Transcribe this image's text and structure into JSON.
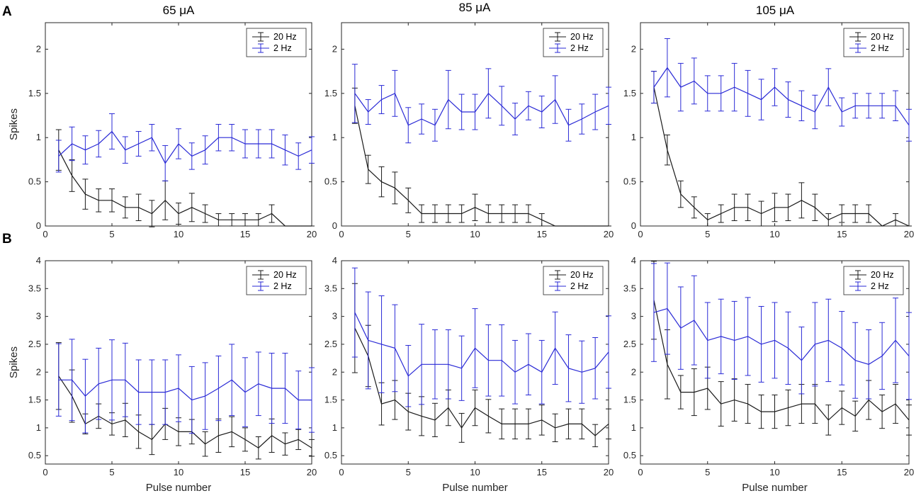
{
  "panel_labels": [
    "A",
    "B"
  ],
  "column_titles": [
    "65 μA",
    "85 μA",
    "105 μA"
  ],
  "colors": {
    "20hz": "#1a1a1a",
    "2hz": "#2a2ad6"
  },
  "chart_data": [
    {
      "type": "line",
      "row": "A",
      "title": "65 μA",
      "xlabel": "",
      "ylabel": "Spikes",
      "xlim": [
        0,
        20
      ],
      "ylim": [
        0,
        2.3
      ],
      "xticks": [
        "0",
        "5",
        "10",
        "15",
        "20"
      ],
      "yticks": [
        "0",
        "0.5",
        "1",
        "1.5",
        "2"
      ],
      "x": [
        1,
        2,
        3,
        4,
        5,
        6,
        7,
        8,
        9,
        10,
        11,
        12,
        13,
        14,
        15,
        16,
        17,
        18,
        19,
        20
      ],
      "legend": [
        "20 Hz",
        "2 Hz"
      ],
      "series": [
        {
          "name": "20 Hz",
          "color": "#1a1a1a",
          "values": [
            0.86,
            0.57,
            0.36,
            0.29,
            0.29,
            0.21,
            0.21,
            0.14,
            0.29,
            0.14,
            0.21,
            0.14,
            0.07,
            0.07,
            0.07,
            0.07,
            0.14,
            0.0,
            0.0,
            0.0
          ],
          "errors": [
            0.23,
            0.18,
            0.17,
            0.13,
            0.13,
            0.12,
            0.15,
            0.15,
            0.22,
            0.12,
            0.16,
            0.1,
            0.07,
            0.07,
            0.07,
            0.07,
            0.1,
            0.0,
            0.0,
            0.0
          ]
        },
        {
          "name": "2 Hz",
          "color": "#2a2ad6",
          "values": [
            0.79,
            0.93,
            0.86,
            0.93,
            1.07,
            0.86,
            0.93,
            1.0,
            0.71,
            0.93,
            0.79,
            0.86,
            1.0,
            1.0,
            0.93,
            0.93,
            0.93,
            0.86,
            0.79,
            0.86
          ],
          "errors": [
            0.18,
            0.19,
            0.16,
            0.15,
            0.2,
            0.15,
            0.14,
            0.15,
            0.2,
            0.17,
            0.15,
            0.16,
            0.15,
            0.15,
            0.16,
            0.16,
            0.16,
            0.17,
            0.15,
            0.15
          ]
        }
      ]
    },
    {
      "type": "line",
      "row": "A",
      "title": "85 μA",
      "xlabel": "",
      "ylabel": "",
      "xlim": [
        0,
        20
      ],
      "ylim": [
        0,
        2.3
      ],
      "xticks": [
        "0",
        "5",
        "10",
        "15",
        "20"
      ],
      "yticks": [
        "0",
        "0.5",
        "1",
        "1.5",
        "2"
      ],
      "x": [
        1,
        2,
        3,
        4,
        5,
        6,
        7,
        8,
        9,
        10,
        11,
        12,
        13,
        14,
        15,
        16,
        17,
        18,
        19,
        20
      ],
      "legend": [
        "20 Hz",
        "2 Hz"
      ],
      "series": [
        {
          "name": "20 Hz",
          "color": "#1a1a1a",
          "values": [
            1.36,
            0.64,
            0.5,
            0.43,
            0.29,
            0.14,
            0.14,
            0.14,
            0.14,
            0.21,
            0.14,
            0.14,
            0.14,
            0.14,
            0.07,
            0.0,
            0.0,
            0.0,
            0.0,
            0.0
          ],
          "errors": [
            0.2,
            0.16,
            0.17,
            0.18,
            0.14,
            0.1,
            0.1,
            0.1,
            0.1,
            0.15,
            0.1,
            0.1,
            0.1,
            0.1,
            0.07,
            0.0,
            0.0,
            0.0,
            0.0,
            0.0
          ]
        },
        {
          "name": "2 Hz",
          "color": "#2a2ad6",
          "values": [
            1.5,
            1.29,
            1.43,
            1.5,
            1.14,
            1.21,
            1.14,
            1.43,
            1.29,
            1.29,
            1.5,
            1.36,
            1.21,
            1.36,
            1.29,
            1.43,
            1.14,
            1.21,
            1.29,
            1.36
          ],
          "errors": [
            0.33,
            0.14,
            0.16,
            0.26,
            0.2,
            0.17,
            0.18,
            0.33,
            0.2,
            0.2,
            0.28,
            0.22,
            0.18,
            0.16,
            0.18,
            0.27,
            0.18,
            0.17,
            0.2,
            0.21
          ]
        }
      ]
    },
    {
      "type": "line",
      "row": "A",
      "title": "105 μA",
      "xlabel": "",
      "ylabel": "",
      "xlim": [
        0,
        20
      ],
      "ylim": [
        0,
        2.3
      ],
      "xticks": [
        "0",
        "5",
        "10",
        "15",
        "20"
      ],
      "yticks": [
        "0",
        "0.5",
        "1",
        "1.5",
        "2"
      ],
      "x": [
        1,
        2,
        3,
        4,
        5,
        6,
        7,
        8,
        9,
        10,
        11,
        12,
        13,
        14,
        15,
        16,
        17,
        18,
        19,
        20
      ],
      "legend": [
        "20 Hz",
        "2 Hz"
      ],
      "series": [
        {
          "name": "20 Hz",
          "color": "#1a1a1a",
          "values": [
            1.57,
            0.86,
            0.36,
            0.21,
            0.07,
            0.14,
            0.21,
            0.21,
            0.14,
            0.21,
            0.21,
            0.29,
            0.21,
            0.07,
            0.14,
            0.14,
            0.14,
            0.0,
            0.07,
            0.0
          ],
          "errors": [
            0.18,
            0.17,
            0.15,
            0.12,
            0.07,
            0.1,
            0.15,
            0.15,
            0.14,
            0.16,
            0.15,
            0.2,
            0.15,
            0.07,
            0.1,
            0.1,
            0.1,
            0.0,
            0.07,
            0.0
          ]
        },
        {
          "name": "2 Hz",
          "color": "#2a2ad6",
          "values": [
            1.57,
            1.79,
            1.57,
            1.64,
            1.5,
            1.5,
            1.57,
            1.5,
            1.43,
            1.57,
            1.43,
            1.36,
            1.29,
            1.57,
            1.29,
            1.36,
            1.36,
            1.36,
            1.36,
            1.14
          ],
          "errors": [
            0.18,
            0.33,
            0.27,
            0.26,
            0.2,
            0.2,
            0.27,
            0.26,
            0.23,
            0.21,
            0.2,
            0.17,
            0.19,
            0.21,
            0.16,
            0.14,
            0.14,
            0.14,
            0.17,
            0.18
          ]
        }
      ]
    },
    {
      "type": "line",
      "row": "B",
      "title": "",
      "xlabel": "Pulse number",
      "ylabel": "Spikes",
      "xlim": [
        0,
        20
      ],
      "ylim": [
        0.35,
        4.0
      ],
      "xticks": [
        "0",
        "5",
        "10",
        "15",
        "20"
      ],
      "yticks": [
        "0.5",
        "1",
        "1.5",
        "2",
        "2.5",
        "3",
        "3.5",
        "4"
      ],
      "x": [
        1,
        2,
        3,
        4,
        5,
        6,
        7,
        8,
        9,
        10,
        11,
        12,
        13,
        14,
        15,
        16,
        17,
        18,
        19,
        20
      ],
      "legend": [
        "20 Hz",
        "2 Hz"
      ],
      "series": [
        {
          "name": "20 Hz",
          "color": "#1a1a1a",
          "values": [
            1.93,
            1.57,
            1.07,
            1.21,
            1.07,
            1.14,
            0.93,
            0.79,
            1.07,
            0.93,
            0.93,
            0.71,
            0.86,
            0.93,
            0.79,
            0.64,
            0.86,
            0.71,
            0.79,
            0.64
          ],
          "errors": [
            0.6,
            0.47,
            0.18,
            0.22,
            0.2,
            0.3,
            0.3,
            0.27,
            0.28,
            0.25,
            0.22,
            0.22,
            0.3,
            0.27,
            0.21,
            0.2,
            0.3,
            0.2,
            0.18,
            0.15
          ]
        },
        {
          "name": "2 Hz",
          "color": "#2a2ad6",
          "values": [
            1.86,
            1.86,
            1.57,
            1.79,
            1.86,
            1.86,
            1.64,
            1.64,
            1.64,
            1.71,
            1.5,
            1.57,
            1.71,
            1.86,
            1.64,
            1.79,
            1.71,
            1.71,
            1.5,
            1.5
          ],
          "errors": [
            0.65,
            0.73,
            0.66,
            0.64,
            0.72,
            0.66,
            0.58,
            0.58,
            0.58,
            0.6,
            0.6,
            0.6,
            0.58,
            0.64,
            0.62,
            0.57,
            0.63,
            0.63,
            0.52,
            0.58
          ]
        }
      ]
    },
    {
      "type": "line",
      "row": "B",
      "title": "",
      "xlabel": "Pulse number",
      "ylabel": "",
      "xlim": [
        0,
        20
      ],
      "ylim": [
        0.35,
        4.0
      ],
      "xticks": [
        "0",
        "5",
        "10",
        "15",
        "20"
      ],
      "yticks": [
        "0.5",
        "1",
        "1.5",
        "2",
        "2.5",
        "3",
        "3.5",
        "4"
      ],
      "x": [
        1,
        2,
        3,
        4,
        5,
        6,
        7,
        8,
        9,
        10,
        11,
        12,
        13,
        14,
        15,
        16,
        17,
        18,
        19,
        20
      ],
      "legend": [
        "20 Hz",
        "2 Hz"
      ],
      "series": [
        {
          "name": "20 Hz",
          "color": "#1a1a1a",
          "values": [
            2.79,
            2.29,
            1.43,
            1.5,
            1.29,
            1.21,
            1.14,
            1.36,
            1.0,
            1.36,
            1.21,
            1.07,
            1.07,
            1.07,
            1.14,
            1.0,
            1.07,
            1.07,
            0.86,
            1.07
          ],
          "errors": [
            0.8,
            0.55,
            0.38,
            0.35,
            0.33,
            0.35,
            0.3,
            0.32,
            0.26,
            0.32,
            0.3,
            0.27,
            0.27,
            0.27,
            0.27,
            0.25,
            0.27,
            0.27,
            0.2,
            0.27
          ]
        },
        {
          "name": "2 Hz",
          "color": "#2a2ad6",
          "values": [
            3.07,
            2.57,
            2.5,
            2.43,
            1.93,
            2.14,
            2.14,
            2.14,
            2.07,
            2.43,
            2.21,
            2.21,
            2.0,
            2.14,
            2.0,
            2.43,
            2.07,
            2.0,
            2.07,
            2.36
          ],
          "errors": [
            0.8,
            0.87,
            0.87,
            0.78,
            0.55,
            0.72,
            0.62,
            0.62,
            0.58,
            0.71,
            0.64,
            0.64,
            0.57,
            0.55,
            0.57,
            0.65,
            0.6,
            0.56,
            0.55,
            0.65
          ]
        }
      ]
    },
    {
      "type": "line",
      "row": "B",
      "title": "",
      "xlabel": "Pulse number",
      "ylabel": "",
      "xlim": [
        0,
        20
      ],
      "ylim": [
        0.35,
        4.0
      ],
      "xticks": [
        "0",
        "5",
        "10",
        "15",
        "20"
      ],
      "yticks": [
        "0.5",
        "1",
        "1.5",
        "2",
        "2.5",
        "3",
        "3.5",
        "4"
      ],
      "x": [
        1,
        2,
        3,
        4,
        5,
        6,
        7,
        8,
        9,
        10,
        11,
        12,
        13,
        14,
        15,
        16,
        17,
        18,
        19,
        20
      ],
      "legend": [
        "20 Hz",
        "2 Hz"
      ],
      "series": [
        {
          "name": "20 Hz",
          "color": "#1a1a1a",
          "values": [
            3.29,
            2.14,
            1.64,
            1.64,
            1.71,
            1.43,
            1.5,
            1.43,
            1.29,
            1.29,
            1.36,
            1.43,
            1.43,
            1.14,
            1.36,
            1.21,
            1.5,
            1.29,
            1.43,
            1.14
          ],
          "errors": [
            0.7,
            0.62,
            0.3,
            0.42,
            0.38,
            0.4,
            0.38,
            0.35,
            0.3,
            0.3,
            0.32,
            0.35,
            0.35,
            0.27,
            0.3,
            0.27,
            0.35,
            0.3,
            0.35,
            0.27
          ]
        },
        {
          "name": "2 Hz",
          "color": "#2a2ad6",
          "values": [
            3.07,
            3.14,
            2.79,
            2.93,
            2.57,
            2.64,
            2.57,
            2.64,
            2.5,
            2.57,
            2.43,
            2.21,
            2.5,
            2.57,
            2.43,
            2.21,
            2.14,
            2.29,
            2.57,
            2.29
          ],
          "errors": [
            0.88,
            0.82,
            0.74,
            0.8,
            0.68,
            0.67,
            0.7,
            0.7,
            0.68,
            0.68,
            0.65,
            0.6,
            0.75,
            0.74,
            0.66,
            0.68,
            0.62,
            0.6,
            0.76,
            0.78
          ]
        }
      ]
    }
  ]
}
